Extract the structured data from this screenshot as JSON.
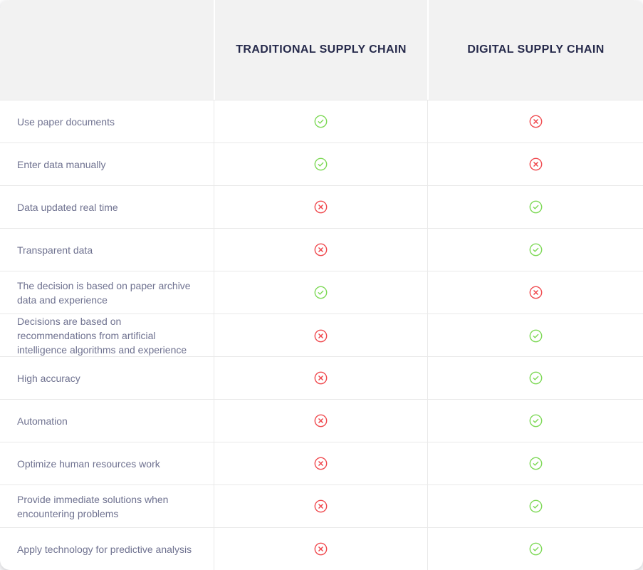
{
  "colors": {
    "header_bg": "#f2f2f2",
    "header_text": "#262a4b",
    "label_text": "#6f7290",
    "border": "#e9e9e9",
    "check_green": "#7ed957",
    "cross_red": "#f04b50",
    "card_bg": "#ffffff"
  },
  "icons": {
    "check": "check-circle-icon",
    "cross": "cross-circle-icon"
  },
  "chart_data": {
    "type": "table",
    "title": "",
    "columns": [
      "",
      "TRADITIONAL SUPPLY CHAIN",
      "DIGITAL SUPPLY CHAIN"
    ],
    "legend": {
      "check_means": "applies",
      "cross_means": "does not apply"
    },
    "rows": [
      {
        "feature": "Use paper documents",
        "traditional": true,
        "digital": false
      },
      {
        "feature": "Enter data manually",
        "traditional": true,
        "digital": false
      },
      {
        "feature": "Data updated real time",
        "traditional": false,
        "digital": true
      },
      {
        "feature": "Transparent data",
        "traditional": false,
        "digital": true
      },
      {
        "feature": "The decision is based on paper archive data and experience",
        "traditional": true,
        "digital": false
      },
      {
        "feature": "Decisions are based on recommendations from artificial intelligence algorithms and experience",
        "traditional": false,
        "digital": true
      },
      {
        "feature": "High accuracy",
        "traditional": false,
        "digital": true
      },
      {
        "feature": "Automation",
        "traditional": false,
        "digital": true
      },
      {
        "feature": "Optimize human resources work",
        "traditional": false,
        "digital": true
      },
      {
        "feature": "Provide immediate solutions when encountering problems",
        "traditional": false,
        "digital": true
      },
      {
        "feature": "Apply technology for predictive analysis",
        "traditional": false,
        "digital": true
      }
    ]
  }
}
